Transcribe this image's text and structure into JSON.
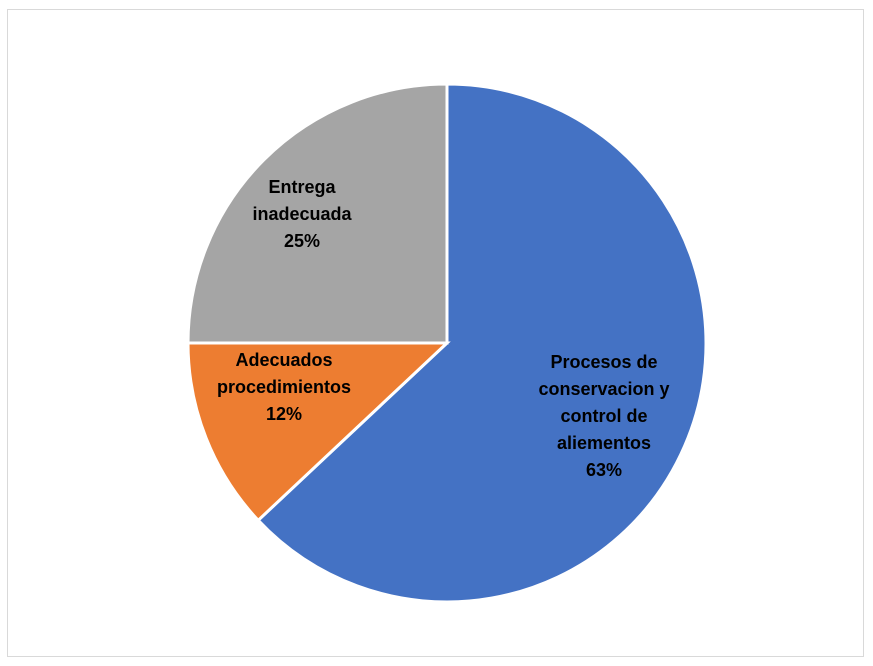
{
  "chart_data": {
    "type": "pie",
    "title": "",
    "slices": [
      {
        "lines": [
          "Procesos de",
          "conservacion y",
          "control de",
          "aliementos"
        ],
        "pct_label": "63%",
        "value": 63,
        "color": "#4472C4"
      },
      {
        "lines": [
          "Adecuados",
          "procedimientos"
        ],
        "pct_label": "12%",
        "value": 12,
        "color": "#ED7D31"
      },
      {
        "lines": [
          "Entrega",
          "inadecuada"
        ],
        "pct_label": "25%",
        "value": 25,
        "color": "#A5A5A5"
      }
    ],
    "legend": "none"
  }
}
